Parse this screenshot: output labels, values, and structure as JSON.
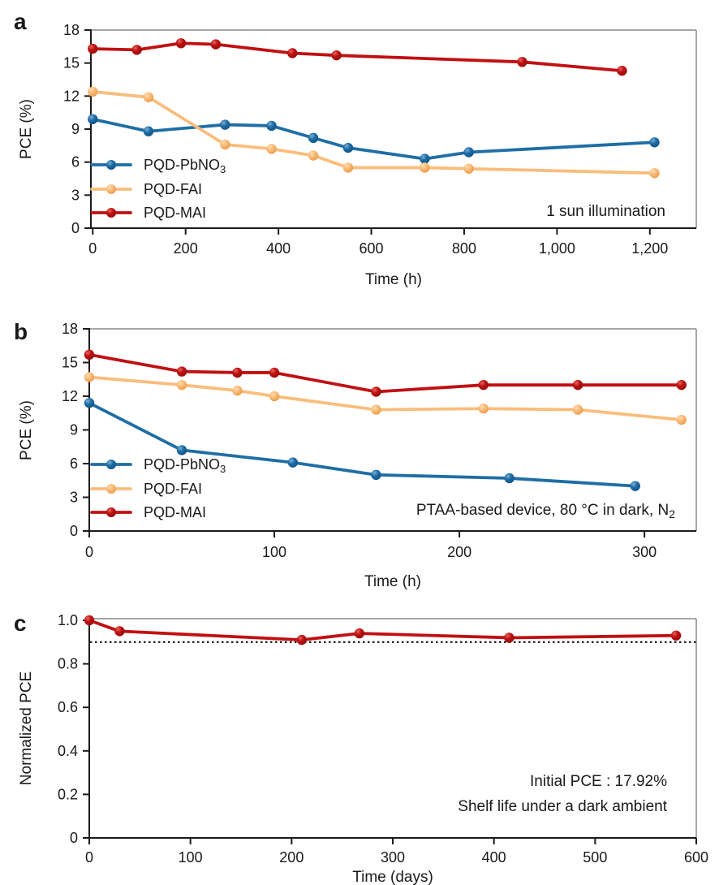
{
  "figure_title": "",
  "colors": {
    "blue_line": "#1f6ea6",
    "blue_marker_light": "#7db0d4",
    "blue_marker_dark": "#0f5286",
    "orange_line": "#f9bd7c",
    "orange_marker_light": "#fddcb0",
    "orange_marker_dark": "#ea9a47",
    "red_line": "#c01012",
    "red_marker_light": "#e4675c",
    "red_marker_dark": "#930d0d",
    "axis_black": "#1a1a1a",
    "frame_gray": "#8a8a8a",
    "dotted_line": "#111111"
  },
  "chart_data": [
    {
      "type": "line",
      "panel": "a",
      "xlabel": "Time (h)",
      "ylabel": "PCE (%)",
      "xlim": [
        0,
        1300
      ],
      "ylim": [
        0,
        18
      ],
      "grid": false,
      "legend_position": "left-middle",
      "xticks": {
        "values": [
          0,
          200,
          400,
          600,
          800,
          1000,
          1200
        ],
        "labels": [
          "0",
          "200",
          "400",
          "600",
          "800",
          "1,000",
          "1,200"
        ]
      },
      "yticks": {
        "values": [
          0,
          3,
          6,
          9,
          12,
          15,
          18
        ],
        "labels": [
          "0",
          "3",
          "6",
          "9",
          "12",
          "15",
          "18"
        ]
      },
      "annotations": [
        [
          {
            "t": "1 sun illumination"
          }
        ]
      ],
      "series": [
        {
          "name": "PQD-PbNO3",
          "label": [
            {
              "t": "PQD-PbNO"
            },
            {
              "t": "3",
              "sub": true
            }
          ],
          "color": "#1f6ea6",
          "marker_light": "#7db0d4",
          "marker_dark": "#0f5286",
          "points": [
            [
              0,
              9.9
            ],
            [
              120,
              8.8
            ],
            [
              285,
              9.4
            ],
            [
              385,
              9.3
            ],
            [
              475,
              8.2
            ],
            [
              550,
              7.3
            ],
            [
              715,
              6.3
            ],
            [
              810,
              6.9
            ],
            [
              1210,
              7.8
            ]
          ]
        },
        {
          "name": "PQD-FAI",
          "label": [
            {
              "t": "PQD-FAI"
            }
          ],
          "color": "#f9bd7c",
          "marker_light": "#fddcb0",
          "marker_dark": "#ea9a47",
          "points": [
            [
              0,
              12.4
            ],
            [
              120,
              11.9
            ],
            [
              285,
              7.6
            ],
            [
              385,
              7.2
            ],
            [
              475,
              6.6
            ],
            [
              550,
              5.5
            ],
            [
              715,
              5.5
            ],
            [
              810,
              5.4
            ],
            [
              1210,
              5.0
            ]
          ]
        },
        {
          "name": "PQD-MAI",
          "label": [
            {
              "t": "PQD-MAI"
            }
          ],
          "color": "#c01012",
          "marker_light": "#e4675c",
          "marker_dark": "#930d0d",
          "points": [
            [
              0,
              16.3
            ],
            [
              95,
              16.2
            ],
            [
              190,
              16.8
            ],
            [
              265,
              16.7
            ],
            [
              430,
              15.9
            ],
            [
              525,
              15.7
            ],
            [
              925,
              15.1
            ],
            [
              1140,
              14.3
            ]
          ]
        }
      ]
    },
    {
      "type": "line",
      "panel": "b",
      "xlabel": "Time (h)",
      "ylabel": "PCE (%)",
      "xlim": [
        0,
        328
      ],
      "ylim": [
        0,
        18
      ],
      "grid": false,
      "legend_position": "left-middle",
      "xticks": {
        "values": [
          0,
          100,
          200,
          300
        ],
        "labels": [
          "0",
          "100",
          "200",
          "300"
        ]
      },
      "yticks": {
        "values": [
          0,
          3,
          6,
          9,
          12,
          15,
          18
        ],
        "labels": [
          "0",
          "3",
          "6",
          "9",
          "12",
          "15",
          "18"
        ]
      },
      "annotations": [
        [
          {
            "t": "PTAA-based device, 80 °C in dark, N"
          },
          {
            "t": "2",
            "sub": true
          }
        ]
      ],
      "series": [
        {
          "name": "PQD-PbNO3",
          "label": [
            {
              "t": "PQD-PbNO"
            },
            {
              "t": "3",
              "sub": true
            }
          ],
          "color": "#1f6ea6",
          "marker_light": "#7db0d4",
          "marker_dark": "#0f5286",
          "points": [
            [
              0,
              11.4
            ],
            [
              50,
              7.2
            ],
            [
              110,
              6.1
            ],
            [
              155,
              5.0
            ],
            [
              227,
              4.7
            ],
            [
              295,
              4.0
            ]
          ]
        },
        {
          "name": "PQD-FAI",
          "label": [
            {
              "t": "PQD-FAI"
            }
          ],
          "color": "#f9bd7c",
          "marker_light": "#fddcb0",
          "marker_dark": "#ea9a47",
          "points": [
            [
              0,
              13.7
            ],
            [
              50,
              13.0
            ],
            [
              80,
              12.5
            ],
            [
              100,
              12.0
            ],
            [
              155,
              10.8
            ],
            [
              213,
              10.9
            ],
            [
              264,
              10.8
            ],
            [
              320,
              9.9
            ]
          ]
        },
        {
          "name": "PQD-MAI",
          "label": [
            {
              "t": "PQD-MAI"
            }
          ],
          "color": "#c01012",
          "marker_light": "#e4675c",
          "marker_dark": "#930d0d",
          "points": [
            [
              0,
              15.7
            ],
            [
              50,
              14.2
            ],
            [
              80,
              14.1
            ],
            [
              100,
              14.1
            ],
            [
              155,
              12.4
            ],
            [
              213,
              13.0
            ],
            [
              264,
              13.0
            ],
            [
              320,
              13.0
            ]
          ]
        }
      ]
    },
    {
      "type": "line",
      "panel": "c",
      "xlabel": "Time (days)",
      "ylabel": "Normalized PCE",
      "xlim": [
        0,
        600
      ],
      "ylim": [
        0,
        1.0
      ],
      "grid": false,
      "legend_position": "none",
      "hline": {
        "value": 0.9,
        "style": "dotted"
      },
      "xticks": {
        "values": [
          0,
          100,
          200,
          300,
          400,
          500,
          600
        ],
        "labels": [
          "0",
          "100",
          "200",
          "300",
          "400",
          "500",
          "600"
        ]
      },
      "yticks": {
        "values": [
          0,
          0.2,
          0.4,
          0.6,
          0.8,
          1.0
        ],
        "labels": [
          "0",
          "0.2",
          "0.4",
          "0.6",
          "0.8",
          "1.0"
        ]
      },
      "annotations": [
        [
          {
            "t": "Initial PCE : 17.92%"
          }
        ],
        [
          {
            "t": "Shelf life under a dark ambient"
          }
        ]
      ],
      "series": [
        {
          "name": "Normalized PCE (dark ambient shelf life)",
          "label": [
            {
              "t": ""
            }
          ],
          "color": "#c01012",
          "marker_light": "#e4675c",
          "marker_dark": "#930d0d",
          "points": [
            [
              0,
              1.0
            ],
            [
              30,
              0.95
            ],
            [
              210,
              0.91
            ],
            [
              267,
              0.94
            ],
            [
              415,
              0.92
            ],
            [
              580,
              0.93
            ]
          ]
        }
      ]
    }
  ],
  "panel_letters": [
    "a",
    "b",
    "c"
  ]
}
